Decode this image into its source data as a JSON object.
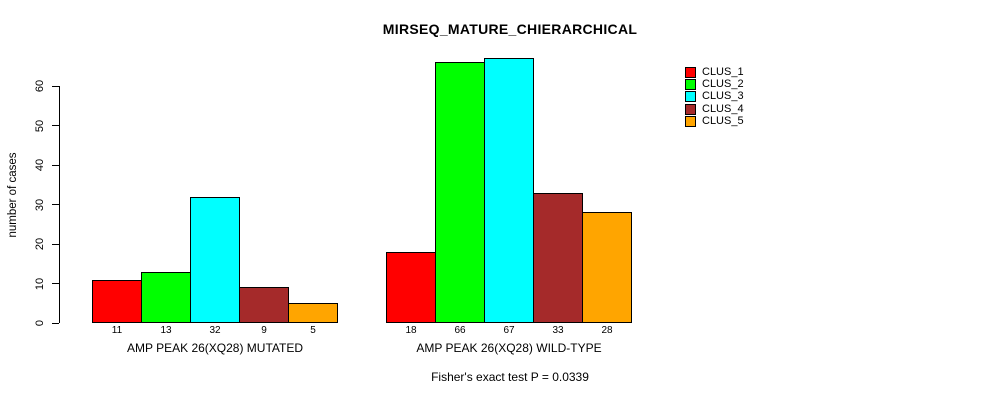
{
  "chart_data": {
    "type": "bar",
    "title": "MIRSEQ_MATURE_CHIERARCHICAL",
    "ylabel": "number of cases",
    "footnote": "Fisher's exact test P = 0.0339",
    "ylim": [
      0,
      60
    ],
    "yticks": [
      0,
      10,
      20,
      30,
      40,
      50,
      60
    ],
    "grid": false,
    "legend_position": "top-right-inside",
    "categories": [
      "AMP PEAK 26(XQ28) MUTATED",
      "AMP PEAK 26(XQ28) WILD-TYPE"
    ],
    "series": [
      {
        "name": "CLUS_1",
        "color": "#FF0000",
        "values": [
          11,
          18
        ]
      },
      {
        "name": "CLUS_2",
        "color": "#00FF00",
        "values": [
          13,
          66
        ]
      },
      {
        "name": "CLUS_3",
        "color": "#00FFFF",
        "values": [
          32,
          67
        ]
      },
      {
        "name": "CLUS_4",
        "color": "#A52A2A",
        "values": [
          9,
          33
        ]
      },
      {
        "name": "CLUS_5",
        "color": "#FFA500",
        "values": [
          5,
          28
        ]
      }
    ],
    "bar_value_labels": [
      [
        "11",
        "13",
        "32",
        "9",
        "5"
      ],
      [
        "18",
        "66",
        "67",
        "33",
        "28"
      ]
    ]
  }
}
